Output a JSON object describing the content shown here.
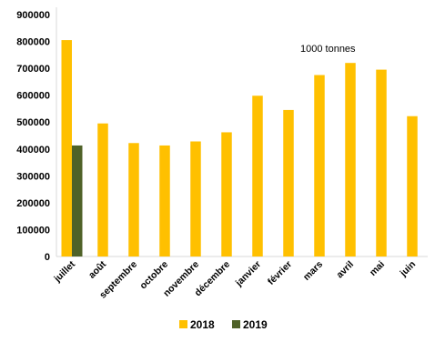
{
  "chart_data": {
    "type": "bar",
    "title": "",
    "xlabel": "",
    "ylabel": "",
    "annotation": "1000 tonnes",
    "categories": [
      "juillet",
      "août",
      "septembre",
      "octobre",
      "novembre",
      "décembre",
      "janvier",
      "février",
      "mars",
      "avril",
      "mai",
      "juin"
    ],
    "ylim": [
      0,
      900000
    ],
    "yticks": [
      0,
      100000,
      200000,
      300000,
      400000,
      500000,
      600000,
      700000,
      800000,
      900000
    ],
    "series": [
      {
        "name": "2018",
        "color": "#FFC000",
        "values": [
          805000,
          495000,
          422000,
          413000,
          428000,
          462000,
          598000,
          545000,
          675000,
          720000,
          695000,
          522000
        ]
      },
      {
        "name": "2019",
        "color": "#4F6228",
        "values": [
          413000,
          null,
          null,
          null,
          null,
          null,
          null,
          null,
          null,
          null,
          null,
          null
        ]
      }
    ],
    "grid": false,
    "legend": "bottom"
  }
}
